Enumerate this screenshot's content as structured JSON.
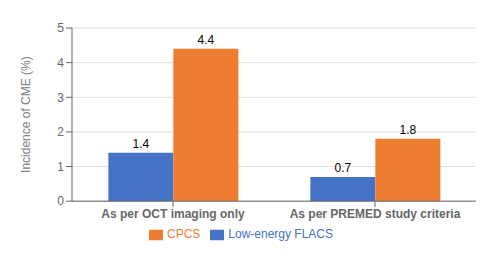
{
  "chart_data": {
    "type": "bar",
    "categories": [
      "As per OCT imaging only",
      "As per PREMED study criteria"
    ],
    "series": [
      {
        "name": "Low-energy FLACS",
        "color": "#4472C4",
        "values": [
          1.4,
          0.7
        ]
      },
      {
        "name": "CPCS",
        "color": "#ED7D31",
        "values": [
          4.4,
          1.8
        ]
      }
    ],
    "ylabel": "Incidence of CME (%)",
    "ylim": [
      0,
      5
    ],
    "yticks": [
      0,
      1,
      2,
      3,
      4,
      5
    ],
    "grid": true,
    "legend": "bottom",
    "data_labels": true
  }
}
